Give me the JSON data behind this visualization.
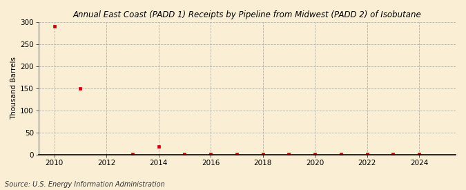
{
  "title": "Annual East Coast (PADD 1) Receipts by Pipeline from Midwest (PADD 2) of Isobutane",
  "ylabel": "Thousand Barrels",
  "source": "Source: U.S. Energy Information Administration",
  "background_color": "#faefd4",
  "plot_background_color": "#faefd4",
  "marker_color": "#cc0000",
  "marker": "s",
  "marker_size": 3.5,
  "xlim": [
    2009.4,
    2025.4
  ],
  "ylim": [
    0,
    300
  ],
  "yticks": [
    0,
    50,
    100,
    150,
    200,
    250,
    300
  ],
  "xticks": [
    2010,
    2012,
    2014,
    2016,
    2018,
    2020,
    2022,
    2024
  ],
  "years": [
    2010,
    2011,
    2013,
    2014,
    2015,
    2016,
    2017,
    2018,
    2019,
    2020,
    2021,
    2022,
    2023,
    2024
  ],
  "values": [
    290,
    150,
    2,
    18,
    2,
    2,
    2,
    2,
    2,
    2,
    2,
    2,
    2,
    2
  ]
}
